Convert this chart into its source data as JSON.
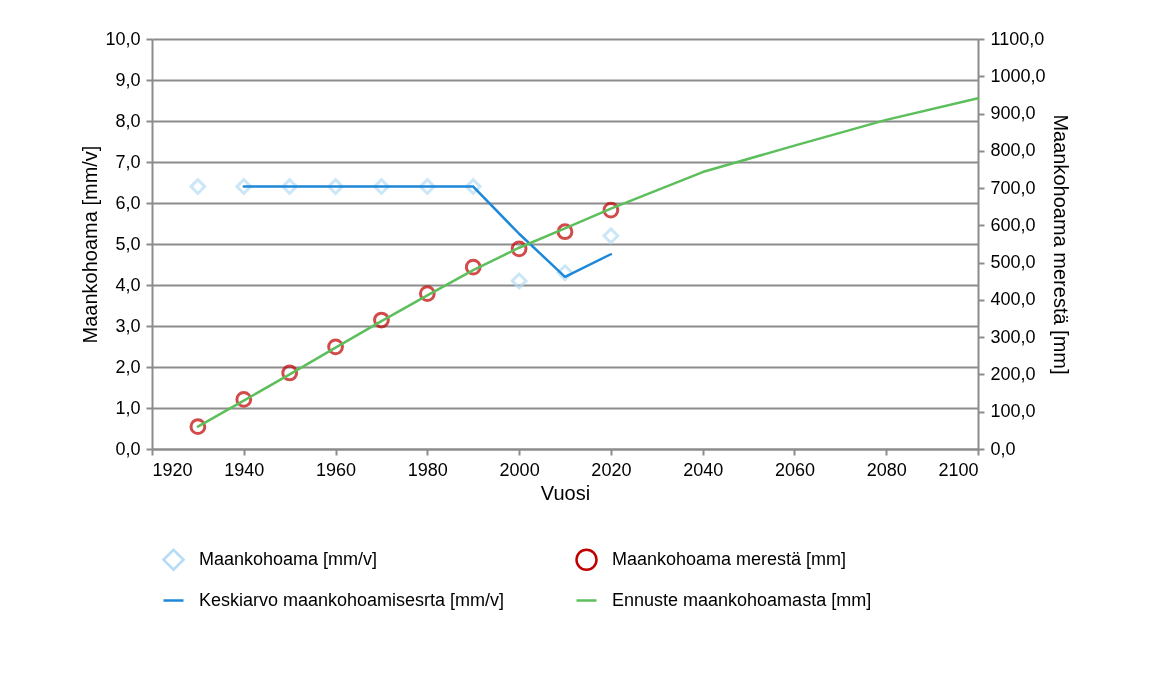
{
  "chart_data": {
    "type": "scatter",
    "xlabel": "Vuosi",
    "ylabel": "Maankohoama [mm/v]",
    "y2label": "Maankohoama merestä [mm]",
    "xlim": [
      1920,
      2100
    ],
    "xticks": [
      1920,
      1940,
      1960,
      1980,
      2000,
      2020,
      2040,
      2060,
      2080,
      2100
    ],
    "ylim": [
      0,
      10
    ],
    "yticks": [
      {
        "value": 0,
        "label": "0,0"
      },
      {
        "value": 1,
        "label": "1,0"
      },
      {
        "value": 2,
        "label": "2,0"
      },
      {
        "value": 3,
        "label": "3,0"
      },
      {
        "value": 4,
        "label": "4,0"
      },
      {
        "value": 5,
        "label": "5,0"
      },
      {
        "value": 6,
        "label": "6,0"
      },
      {
        "value": 7,
        "label": "7,0"
      },
      {
        "value": 8,
        "label": "8,0"
      },
      {
        "value": 9,
        "label": "9,0"
      },
      {
        "value": 10,
        "label": "10,0"
      }
    ],
    "y2lim": [
      0,
      1100
    ],
    "y2ticks": [
      {
        "value": 0,
        "label": "0,0"
      },
      {
        "value": 100,
        "label": "100,0"
      },
      {
        "value": 200,
        "label": "200,0"
      },
      {
        "value": 300,
        "label": "300,0"
      },
      {
        "value": 400,
        "label": "400,0"
      },
      {
        "value": 500,
        "label": "500,0"
      },
      {
        "value": 600,
        "label": "600,0"
      },
      {
        "value": 700,
        "label": "700,0"
      },
      {
        "value": 800,
        "label": "800,0"
      },
      {
        "value": 900,
        "label": "900,0"
      },
      {
        "value": 1000,
        "label": "1000,0"
      },
      {
        "value": 1100,
        "label": "1100,0"
      }
    ],
    "grid": "y",
    "legend": "bottom",
    "series": [
      {
        "name": "Maankohoama [mm/v]",
        "marker": "diamond",
        "color": "#b4dcf4",
        "x": [
          1930,
          1940,
          1950,
          1960,
          1970,
          1980,
          1990,
          2000,
          2010,
          2020
        ],
        "values": [
          6.4,
          6.4,
          6.4,
          6.4,
          6.4,
          6.4,
          6.4,
          4.1,
          4.3,
          5.2
        ]
      },
      {
        "name": "Maankohoama merestä [mm]",
        "marker": "circle",
        "axis": "y2",
        "color": "#c00000",
        "x": [
          1930,
          1940,
          1950,
          1960,
          1970,
          1980,
          1990,
          2000,
          2010,
          2020
        ],
        "values": [
          60,
          133,
          204,
          274,
          346,
          417,
          488,
          537,
          583,
          641
        ]
      },
      {
        "name": "Keskiarvo maankohoamisesrta [mm/v]",
        "type": "line",
        "color": "#1e88d8",
        "x": [
          1940,
          1950,
          1960,
          1970,
          1980,
          1990,
          2000,
          2010,
          2020
        ],
        "values": [
          6.4,
          6.4,
          6.4,
          6.4,
          6.4,
          6.4,
          5.25,
          4.2,
          4.75
        ]
      },
      {
        "name": "Ennuste maankohoamasta [mm]",
        "type": "line",
        "axis": "y2",
        "color": "#5cbf5c",
        "x": [
          1930,
          1940,
          1950,
          1960,
          1970,
          1980,
          1990,
          2000,
          2010,
          2020,
          2040,
          2060,
          2080,
          2100
        ],
        "values": [
          60,
          130,
          200,
          272,
          343,
          412,
          480,
          540,
          592,
          645,
          743,
          814,
          883,
          941
        ]
      }
    ]
  }
}
